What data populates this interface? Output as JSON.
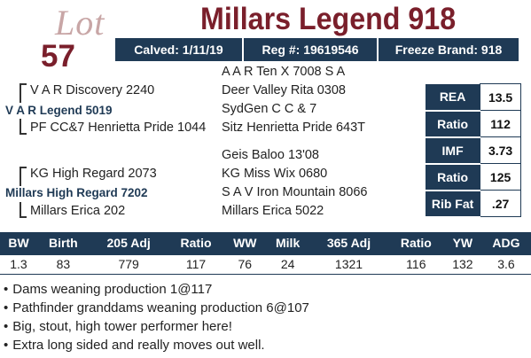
{
  "lot": {
    "word": "Lot",
    "number": "57"
  },
  "title": "Millars Legend 918",
  "info": {
    "calved": "Calved: 1/11/19",
    "reg": "Reg #: 19619546",
    "freeze": "Freeze Brand: 918"
  },
  "pedigree": {
    "sire": "V A R Legend 5019",
    "sire_sire": "V A R Discovery 2240",
    "sire_sire_sire": "A A R Ten X 7008 S A",
    "sire_sire_dam": "Deer Valley Rita 0308",
    "sire_dam": "PF CC&7 Henrietta Pride 1044",
    "sire_dam_sire": "SydGen C C & 7",
    "sire_dam_dam": "Sitz Henrietta Pride 643T",
    "dam": "Millars High Regard 7202",
    "dam_sire": "KG High Regard 2073",
    "dam_sire_sire": "Geis Baloo 13'08",
    "dam_sire_dam": "KG Miss Wix 0680",
    "dam_dam": "Millars Erica 202",
    "dam_dam_sire": "S A V Iron Mountain 8066",
    "dam_dam_dam": "Millars Erica 5022"
  },
  "epd": [
    {
      "label": "REA",
      "value": "13.5"
    },
    {
      "label": "Ratio",
      "value": "112"
    },
    {
      "label": "IMF",
      "value": "3.73"
    },
    {
      "label": "Ratio",
      "value": "125"
    },
    {
      "label": "Rib Fat",
      "value": ".27"
    }
  ],
  "performance": {
    "headers": [
      "BW",
      "Birth",
      "205 Adj",
      "Ratio",
      "WW",
      "Milk",
      "365 Adj",
      "Ratio",
      "YW",
      "ADG"
    ],
    "values": [
      "1.3",
      "83",
      "779",
      "117",
      "76",
      "24",
      "1321",
      "116",
      "132",
      "3.6"
    ]
  },
  "notes": [
    "Dams weaning production 1@117",
    "Pathfinder granddams weaning production 6@107",
    "Big, stout, high tower performer here!",
    "Extra long sided and really moves out well."
  ],
  "colors": {
    "navy": "#1f3a55",
    "maroon": "#7a1f2b",
    "lot_pink": "#c8a6a6"
  }
}
